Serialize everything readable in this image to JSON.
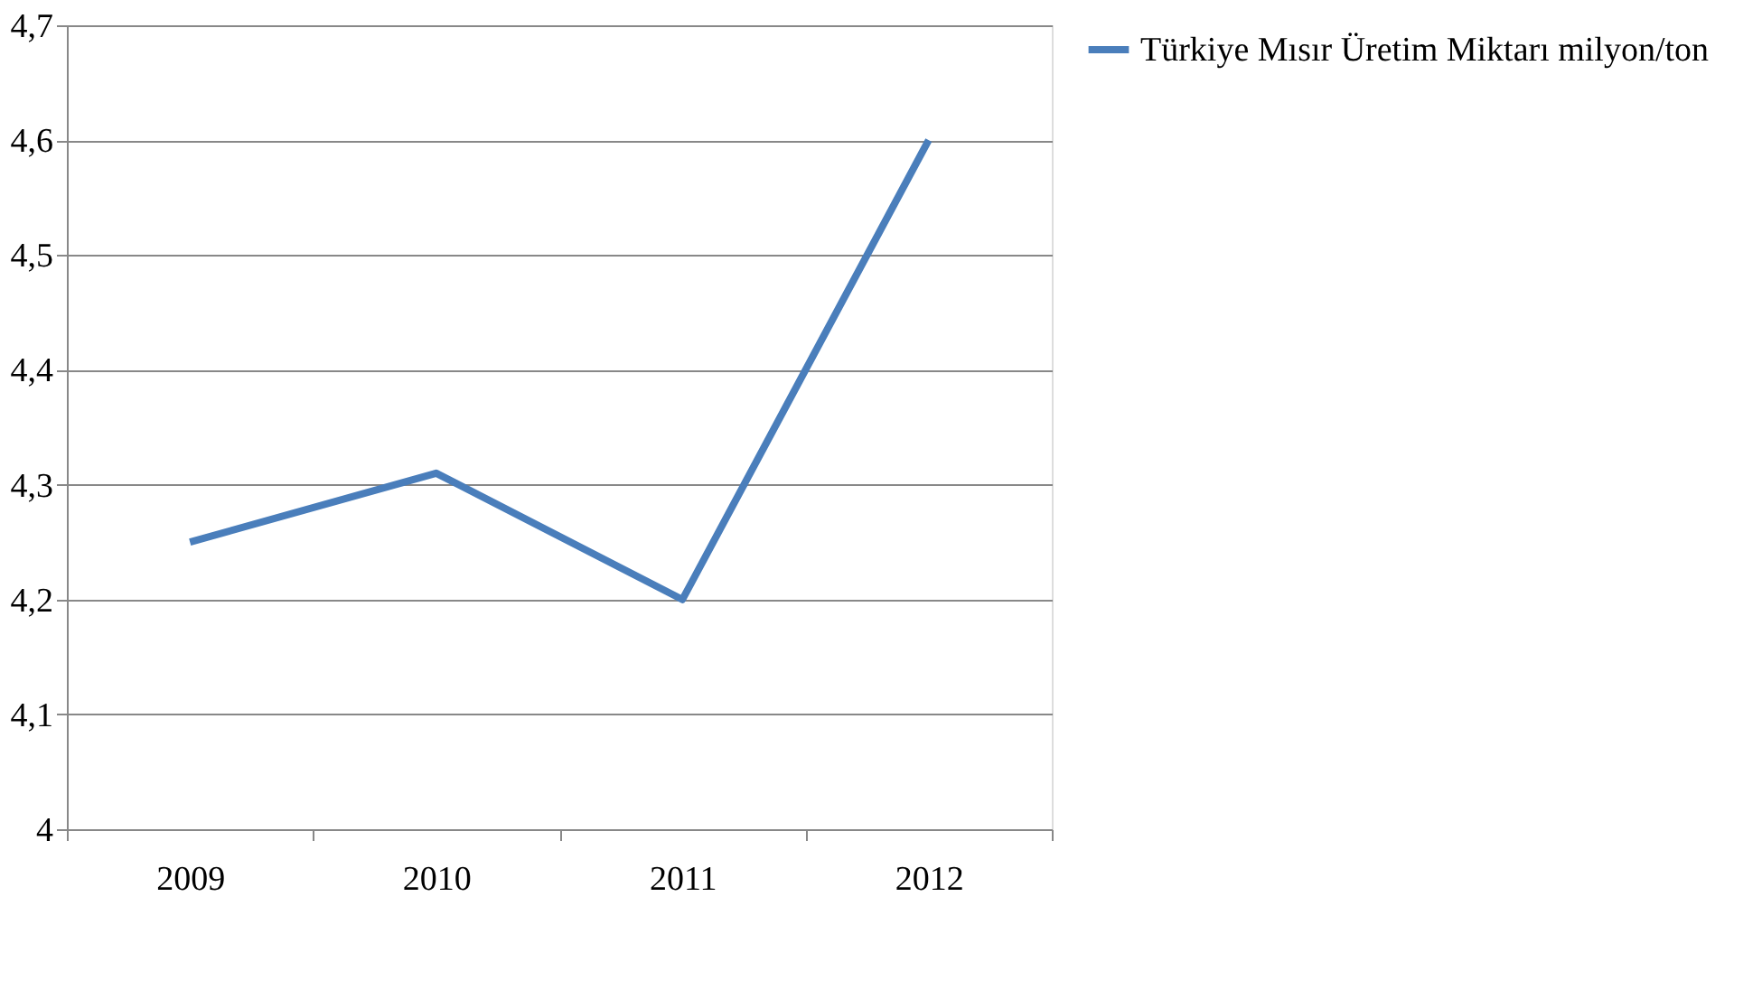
{
  "chart_data": {
    "type": "line",
    "categories": [
      "2009",
      "2010",
      "2011",
      "2012"
    ],
    "series": [
      {
        "name": "Türkiye Mısır Üretim Miktarı milyon/ton",
        "color": "#4a7ebb",
        "values": [
          4.25,
          4.31,
          4.2,
          4.6
        ]
      }
    ],
    "ylim": [
      4,
      4.7
    ],
    "yticks": [
      4,
      {
        "value": 4.1,
        "label": "4,1"
      },
      {
        "value": 4.2,
        "label": "4,2"
      },
      {
        "value": 4.3,
        "label": "4,3"
      },
      {
        "value": 4.4,
        "label": "4,4"
      },
      {
        "value": 4.5,
        "label": "4,5"
      },
      {
        "value": 4.6,
        "label": "4,6"
      },
      {
        "value": 4.7,
        "label": "4,7"
      }
    ],
    "grid": "y",
    "legend": "right",
    "marker": "none",
    "line_style": "solid"
  }
}
